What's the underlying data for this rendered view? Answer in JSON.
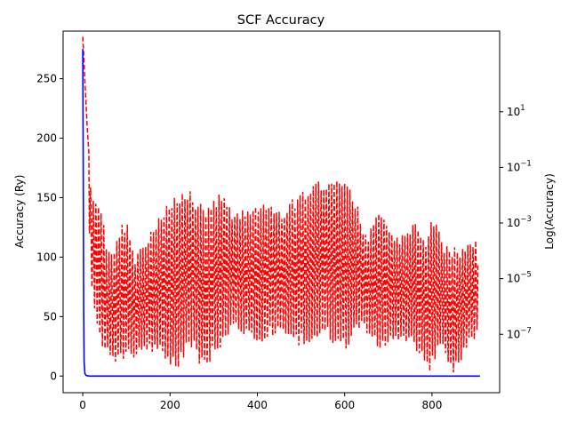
{
  "chart_data": {
    "type": "line",
    "title": "SCF Accuracy",
    "xlabel": "",
    "ylabel": "Accuracy (Ry)",
    "y2label": "Log(Accuracy)",
    "xlim": [
      -45,
      955
    ],
    "ylim": [
      -14,
      290
    ],
    "y2lim_log10": [
      -9.1,
      3.9
    ],
    "y2scale": "log",
    "grid": false,
    "legend": "none",
    "x_ticks": [
      0,
      200,
      400,
      600,
      800
    ],
    "y_ticks": [
      0,
      50,
      100,
      150,
      200,
      250
    ],
    "y2_ticks": [
      {
        "value": 10,
        "mantissa": "10",
        "exp": "1"
      },
      {
        "value": 0.1,
        "mantissa": "10",
        "exp": "−1"
      },
      {
        "value": 0.001,
        "mantissa": "10",
        "exp": "−3"
      },
      {
        "value": 1e-05,
        "mantissa": "10",
        "exp": "−5"
      },
      {
        "value": 1e-07,
        "mantissa": "10",
        "exp": "−7"
      }
    ],
    "series": [
      {
        "axis": "left",
        "color": "#0000ff",
        "style": "solid",
        "points": [
          [
            0,
            275
          ],
          [
            1,
            180
          ],
          [
            2,
            60
          ],
          [
            3,
            12
          ],
          [
            5,
            2
          ],
          [
            8,
            0.5
          ],
          [
            15,
            0
          ],
          [
            910,
            0
          ]
        ]
      },
      {
        "axis": "right",
        "color": "#ff0000",
        "style": "dashed",
        "cycle_period": 6,
        "envelope_upper_log10": [
          [
            0,
            3.7
          ],
          [
            10,
            0.5
          ],
          [
            20,
            -2.0
          ],
          [
            40,
            -2.0
          ],
          [
            55,
            -4.0
          ],
          [
            70,
            -4.0
          ],
          [
            80,
            -3.3
          ],
          [
            100,
            -2.8
          ],
          [
            120,
            -4.2
          ],
          [
            160,
            -3.1
          ],
          [
            200,
            -2.2
          ],
          [
            245,
            -1.7
          ],
          [
            275,
            -2.4
          ],
          [
            320,
            -1.8
          ],
          [
            350,
            -2.7
          ],
          [
            385,
            -2.3
          ],
          [
            420,
            -2.2
          ],
          [
            460,
            -2.5
          ],
          [
            500,
            -1.8
          ],
          [
            540,
            -1.4
          ],
          [
            575,
            -1.3
          ],
          [
            620,
            -1.8
          ],
          [
            650,
            -3.5
          ],
          [
            680,
            -2.5
          ],
          [
            720,
            -3.5
          ],
          [
            760,
            -3.0
          ],
          [
            790,
            -3.5
          ],
          [
            800,
            -2.6
          ],
          [
            830,
            -3.8
          ],
          [
            870,
            -3.9
          ],
          [
            905,
            -3.5
          ]
        ],
        "envelope_lower_log10": [
          [
            0,
            3.7
          ],
          [
            10,
            -1.5
          ],
          [
            20,
            -5.5
          ],
          [
            40,
            -7.5
          ],
          [
            70,
            -8.0
          ],
          [
            100,
            -8.0
          ],
          [
            140,
            -7.7
          ],
          [
            180,
            -7.8
          ],
          [
            210,
            -8.4
          ],
          [
            250,
            -7.5
          ],
          [
            275,
            -8.4
          ],
          [
            300,
            -7.8
          ],
          [
            350,
            -6.9
          ],
          [
            400,
            -7.5
          ],
          [
            440,
            -7.0
          ],
          [
            480,
            -7.5
          ],
          [
            520,
            -7.3
          ],
          [
            560,
            -7.2
          ],
          [
            600,
            -7.7
          ],
          [
            640,
            -6.7
          ],
          [
            680,
            -7.7
          ],
          [
            720,
            -7.2
          ],
          [
            760,
            -7.5
          ],
          [
            795,
            -8.5
          ],
          [
            820,
            -7.5
          ],
          [
            850,
            -8.5
          ],
          [
            880,
            -7.5
          ],
          [
            910,
            -7.0
          ]
        ]
      }
    ]
  }
}
